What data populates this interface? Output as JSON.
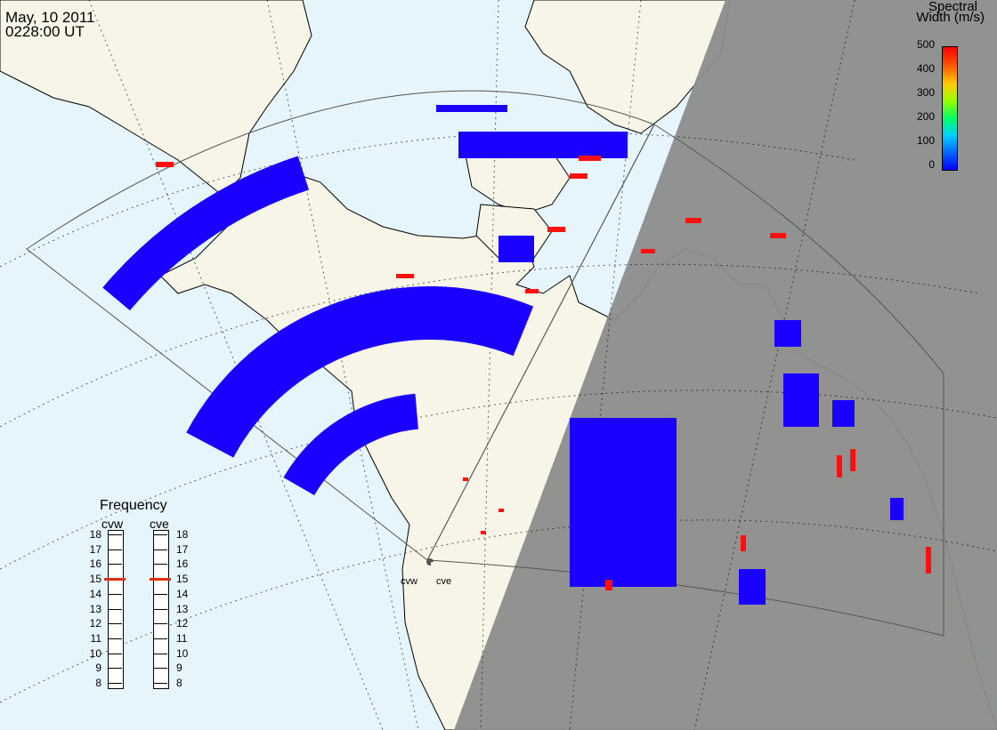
{
  "header": {
    "date": "May, 10 2011",
    "time": "0228:00 UT"
  },
  "colorbar": {
    "title_line1": "Spectral",
    "title_line2": "Width (m/s)",
    "ticks": [
      "500",
      "400",
      "300",
      "200",
      "100",
      "0"
    ],
    "colors": [
      "#0000ff",
      "#0066ff",
      "#00ccff",
      "#00ff66",
      "#66ff00",
      "#ffcc00",
      "#ff6600",
      "#ff0000"
    ]
  },
  "frequency_panel": {
    "title": "Frequency",
    "radars": [
      "cvw",
      "cve"
    ],
    "ticks": [
      "18",
      "17",
      "16",
      "15",
      "14",
      "13",
      "12",
      "11",
      "10",
      "9",
      "8"
    ],
    "selected_mhz": 15
  },
  "sites": [
    {
      "name": "cvw"
    },
    {
      "name": "cve"
    }
  ],
  "colors": {
    "ocean": "#e6f4fb",
    "land": "#f7f5e8",
    "night": "#8c8c8c",
    "coast": "#000000",
    "fov": "#444444",
    "scatter_main": "#1a00ff",
    "scatter_high": "#ff1010"
  }
}
